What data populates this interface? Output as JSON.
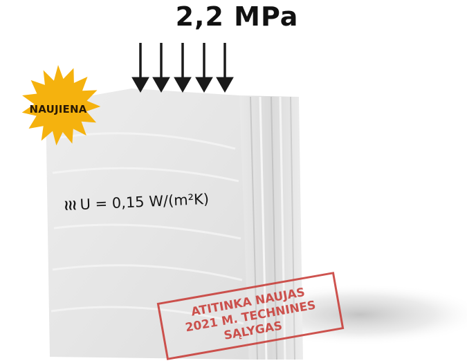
{
  "pressure": {
    "label": "2,2 MPa",
    "arrow_count": 5,
    "arrow_color": "#1a1a1a"
  },
  "badge": {
    "label": "NAUJIENA",
    "color": "#f5b20e"
  },
  "thermal": {
    "icon": "heat-waves-icon",
    "wave_glyph": "≀≀≀",
    "value": "U = 0,15 W/(m²K)"
  },
  "stamp": {
    "lines": [
      "ATITINKA NAUJAS",
      "2021 M. TECHNINES",
      "SĄLYGAS"
    ],
    "color": "#c9413c"
  },
  "block": {
    "face_color": "#ececec",
    "side_color": "#dcdcdc"
  }
}
